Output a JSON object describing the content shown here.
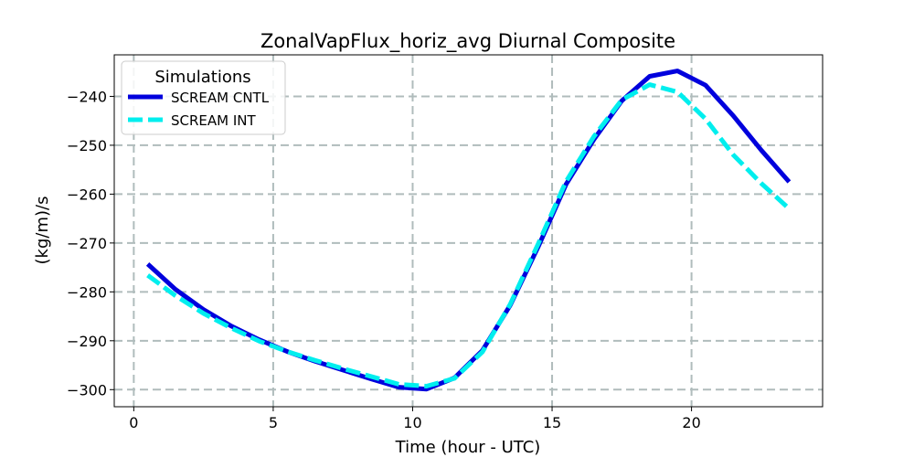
{
  "chart_data": {
    "type": "line",
    "title": "ZonalVapFlux_horiz_avg Diurnal Composite",
    "xlabel": "Time (hour - UTC)",
    "ylabel": "(kg/m)/s",
    "xlim": [
      -0.7,
      24.7
    ],
    "ylim": [
      -303.5,
      -231.5
    ],
    "xticks": [
      0,
      5,
      10,
      15,
      20
    ],
    "xtick_labels": [
      "0",
      "5",
      "10",
      "15",
      "20"
    ],
    "yticks": [
      -300,
      -290,
      -280,
      -270,
      -260,
      -250,
      -240
    ],
    "ytick_labels": [
      "−300",
      "−290",
      "−280",
      "−270",
      "−260",
      "−250",
      "−240"
    ],
    "grid": true,
    "legend": {
      "title": "Simulations",
      "placement": "top-left"
    },
    "x": [
      0.5,
      1.5,
      2.5,
      3.5,
      4.5,
      5.5,
      6.5,
      7.5,
      8.5,
      9.5,
      10.5,
      11.5,
      12.5,
      13.5,
      14.5,
      15.5,
      16.5,
      17.5,
      18.5,
      19.5,
      20.5,
      21.5,
      22.5,
      23.5
    ],
    "series": [
      {
        "name": "SCREAM CNTL",
        "color": "#0000dd",
        "style": "solid",
        "values": [
          -274.3,
          -279.5,
          -283.6,
          -287.0,
          -289.8,
          -292.2,
          -294.2,
          -296.0,
          -297.8,
          -299.5,
          -299.9,
          -297.6,
          -292.0,
          -282.7,
          -270.8,
          -258.0,
          -248.8,
          -240.9,
          -235.9,
          -234.8,
          -237.7,
          -244.0,
          -251.0,
          -257.5
        ]
      },
      {
        "name": "SCREAM INT",
        "color": "#00eeee",
        "style": "dashed",
        "values": [
          -276.6,
          -280.8,
          -284.4,
          -287.4,
          -290.1,
          -292.2,
          -294.0,
          -295.7,
          -297.3,
          -298.9,
          -299.3,
          -297.7,
          -292.3,
          -282.5,
          -270.2,
          -257.4,
          -248.2,
          -240.7,
          -237.6,
          -239.1,
          -244.6,
          -252.0,
          -257.8,
          -263.0
        ]
      }
    ]
  }
}
